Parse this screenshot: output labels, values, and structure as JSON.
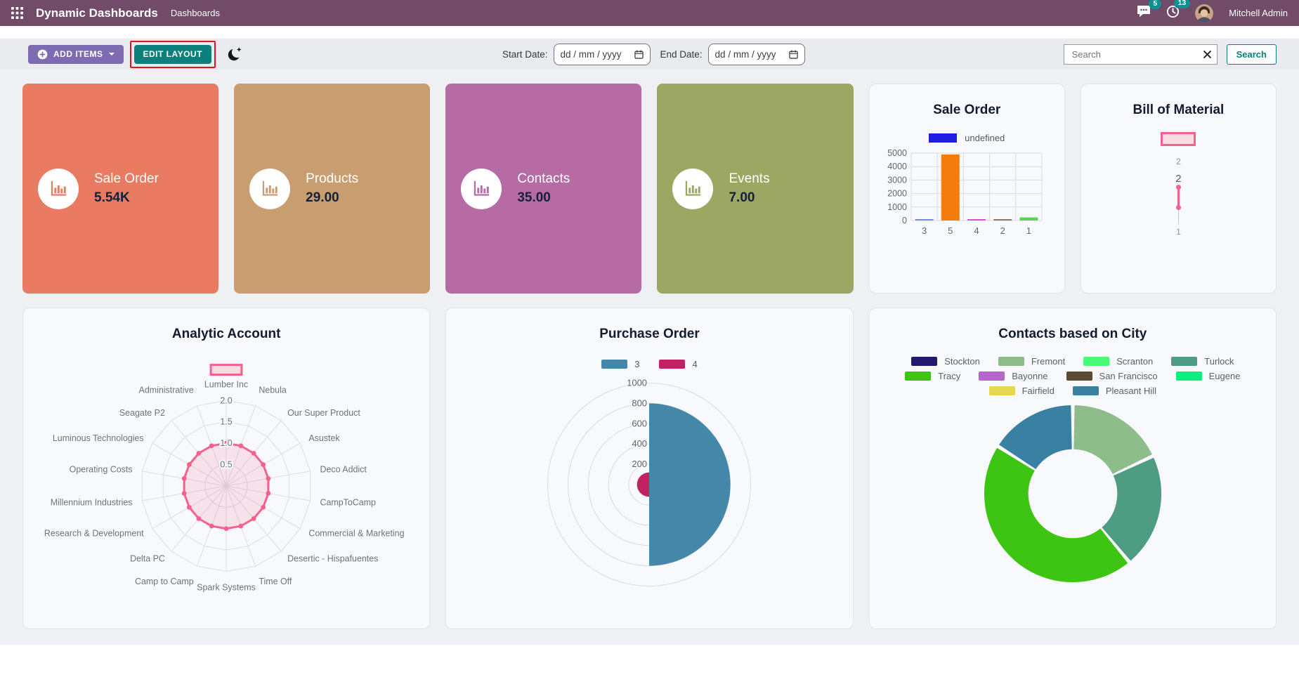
{
  "navbar": {
    "app_title": "Dynamic Dashboards",
    "menu_item": "Dashboards",
    "messages_badge": "5",
    "activities_badge": "13",
    "user_name": "Mitchell Admin",
    "bg_color": "#714B67",
    "badge_color": "#0A9196"
  },
  "toolbar": {
    "add_items_label": "ADD ITEMS",
    "edit_layout_label": "EDIT LAYOUT",
    "add_items_color": "#7D6CB2",
    "edit_layout_color": "#0B807C",
    "highlight_color": "#E3131B",
    "start_date_label": "Start Date:",
    "end_date_label": "End Date:",
    "date_placeholder": "dd / mm / yyyy",
    "search_placeholder": "Search",
    "search_button_label": "Search"
  },
  "kpi_tiles": [
    {
      "title": "Sale Order",
      "value": "5.54K",
      "color": "#E87B62"
    },
    {
      "title": "Products",
      "value": "29.00",
      "color": "#C89E70"
    },
    {
      "title": "Contacts",
      "value": "35.00",
      "color": "#B66BA5"
    },
    {
      "title": "Events",
      "value": "7.00",
      "color": "#9BA763"
    }
  ],
  "chart_data": [
    {
      "id": "sale-order-bar",
      "type": "bar",
      "title": "Sale Order",
      "legend": [
        {
          "label": "undefined",
          "color": "#1F1FE0"
        }
      ],
      "categories": [
        "3",
        "5",
        "4",
        "2",
        "1"
      ],
      "values": [
        35,
        4900,
        25,
        90,
        230
      ],
      "bar_colors": [
        "#7B8BE4",
        "#F07D0D",
        "#D84FE0",
        "#8A7A66",
        "#58D554"
      ],
      "ylim": [
        0,
        5000
      ],
      "yticks": [
        0,
        1000,
        2000,
        3000,
        4000,
        5000
      ],
      "grid": true,
      "legend_position": "top"
    },
    {
      "id": "bom-line",
      "type": "line",
      "title": "Bill of Material",
      "axis_labels": [
        "2",
        "2"
      ],
      "bottom_label": "1",
      "values": [
        2,
        1
      ],
      "color": "#F4618C"
    },
    {
      "id": "analytic-radar",
      "type": "radar",
      "title": "Analytic Account",
      "categories": [
        "Lumber Inc",
        "Nebula",
        "Our Super Product",
        "Asustek",
        "Deco Addict",
        "CampToCamp",
        "Commercial & Marketing",
        "Desertic - Hispafuentes",
        "Time Off",
        "Spark Systems",
        "Camp to Camp",
        "Delta PC",
        "Research & Development",
        "Millennium Industries",
        "Operating Costs",
        "Luminous Technologies",
        "Seagate P2",
        "Administrative"
      ],
      "values": [
        1,
        1,
        1,
        1,
        1,
        1,
        1,
        1,
        1,
        1,
        1,
        1,
        1,
        1,
        1,
        1,
        1,
        1
      ],
      "ticks": [
        0.5,
        1.0,
        1.5,
        2.0
      ],
      "max": 2.0,
      "color": "#F4618C",
      "legend_position": "top"
    },
    {
      "id": "purchase-polar",
      "type": "polarArea",
      "title": "Purchase Order",
      "series": [
        {
          "name": "3",
          "value": 800,
          "color": "#4487A8"
        },
        {
          "name": "4",
          "value": 120,
          "color": "#C32163"
        }
      ],
      "ticks": [
        200,
        400,
        600,
        800,
        1000
      ],
      "max": 1000,
      "legend_position": "top"
    },
    {
      "id": "city-doughnut",
      "type": "doughnut",
      "title": "Contacts based on City",
      "legend": [
        {
          "label": "Stockton",
          "color": "#231A70"
        },
        {
          "label": "Fremont",
          "color": "#8FBC8B"
        },
        {
          "label": "Scranton",
          "color": "#49FB77"
        },
        {
          "label": "Turlock",
          "color": "#4E9C81"
        },
        {
          "label": "Tracy",
          "color": "#3FC414"
        },
        {
          "label": "Bayonne",
          "color": "#B567C9"
        },
        {
          "label": "San Francisco",
          "color": "#5C4B33"
        },
        {
          "label": "Eugene",
          "color": "#0BEF7E"
        },
        {
          "label": "Fairfield",
          "color": "#E7D74F"
        },
        {
          "label": "Pleasant Hill",
          "color": "#3A80A2"
        }
      ],
      "segments": [
        {
          "label": "Fremont",
          "value": 18,
          "color": "#8FBC8B"
        },
        {
          "label": "Turlock",
          "value": 21,
          "color": "#4E9C81"
        },
        {
          "label": "Tracy",
          "value": 45,
          "color": "#3EC513"
        },
        {
          "label": "Pleasant Hill",
          "value": 16,
          "color": "#3A80A2"
        }
      ]
    }
  ]
}
